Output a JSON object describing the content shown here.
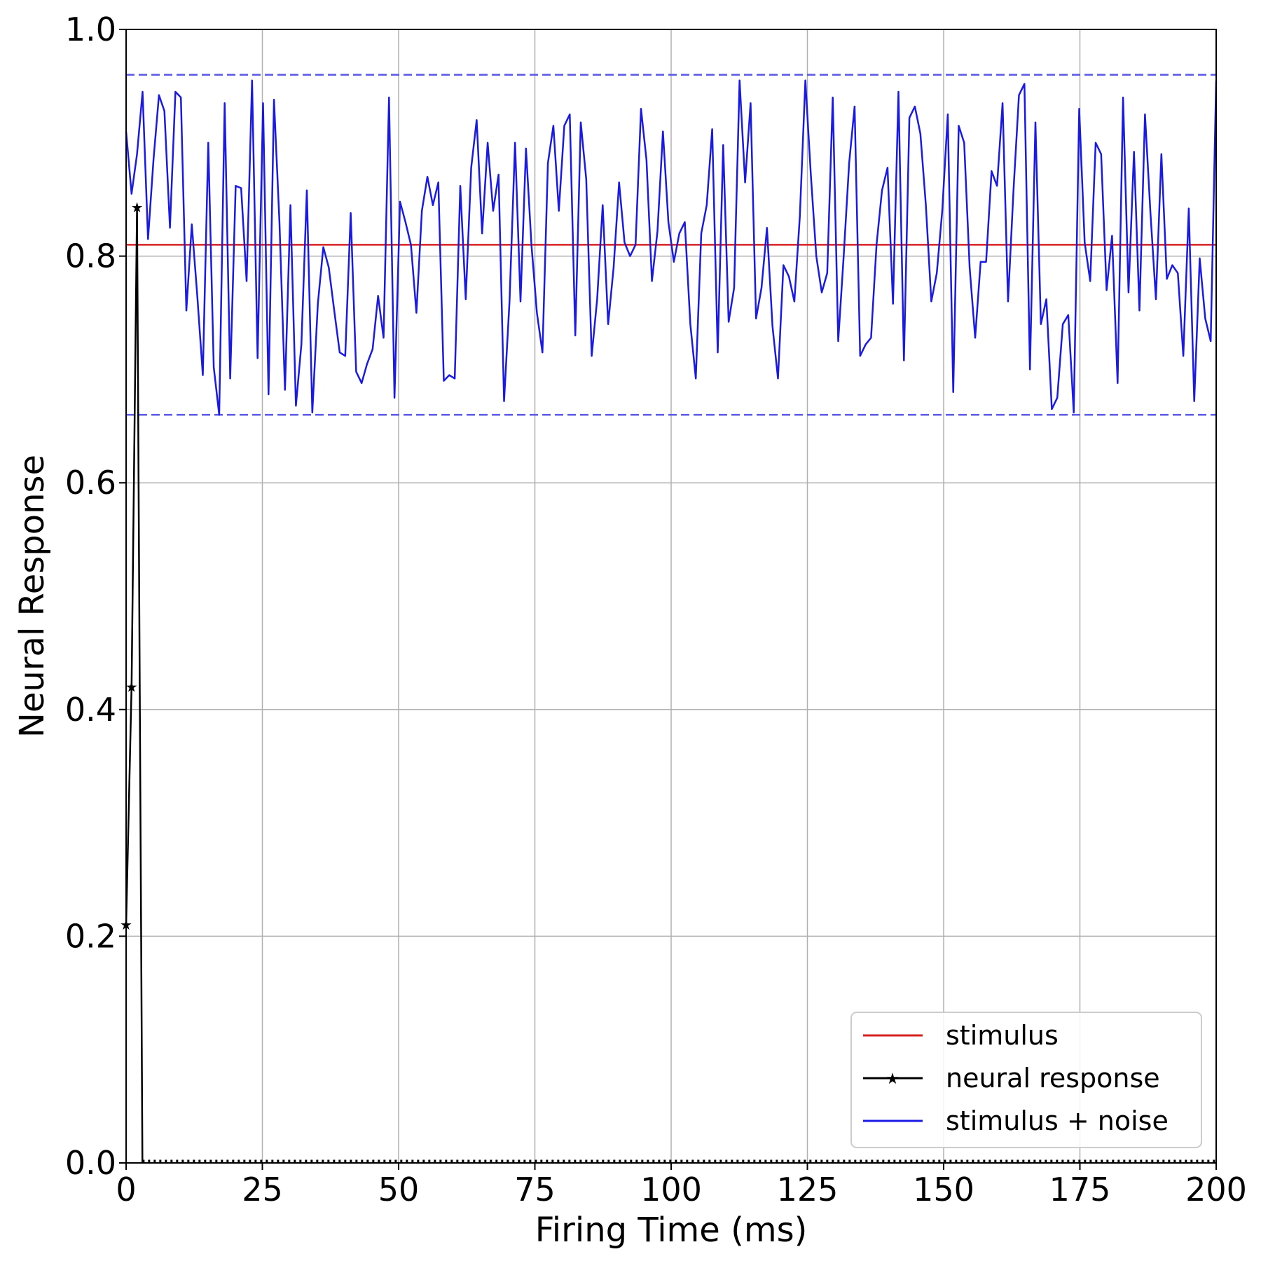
{
  "chart_data": {
    "type": "line",
    "title": "",
    "xlabel": "Firing Time (ms)",
    "ylabel": "Neural Response",
    "xlim": [
      0,
      200
    ],
    "ylim": [
      0.0,
      1.0
    ],
    "x_ticks": [
      "0",
      "25",
      "50",
      "75",
      "100",
      "125",
      "150",
      "175",
      "200"
    ],
    "y_ticks": [
      "0.0",
      "0.2",
      "0.4",
      "0.6",
      "0.8",
      "1.0"
    ],
    "grid": true,
    "legend_position": "lower-right",
    "legend": [
      "stimulus",
      "neural response",
      "stimulus + noise"
    ],
    "reference_lines": [
      {
        "y": 0.96,
        "style": "dashed",
        "color": "#5a5ae6"
      },
      {
        "y": 0.66,
        "style": "dashed",
        "color": "#5a5ae6"
      }
    ],
    "series": [
      {
        "name": "stimulus",
        "color": "#d62020",
        "x": [
          0,
          200
        ],
        "y": [
          0.81,
          0.81
        ]
      },
      {
        "name": "neural response",
        "color": "#000000",
        "marker": "star",
        "x": [
          0,
          1,
          2,
          3
        ],
        "y": [
          0.21,
          0.42,
          0.843,
          0.0
        ]
      },
      {
        "name": "stimulus + noise",
        "color": "#1a1ae6",
        "y": [
          0.91,
          0.855,
          0.89,
          0.945,
          0.815,
          0.885,
          0.942,
          0.928,
          0.825,
          0.945,
          0.94,
          0.752,
          0.828,
          0.765,
          0.695,
          0.9,
          0.702,
          0.66,
          0.935,
          0.692,
          0.862,
          0.86,
          0.778,
          0.955,
          0.71,
          0.935,
          0.678,
          0.938,
          0.83,
          0.682,
          0.845,
          0.668,
          0.722,
          0.858,
          0.662,
          0.758,
          0.808,
          0.79,
          0.752,
          0.715,
          0.712,
          0.838,
          0.698,
          0.688,
          0.705,
          0.718,
          0.765,
          0.728,
          0.94,
          0.675,
          0.848,
          0.83,
          0.81,
          0.75,
          0.84,
          0.87,
          0.845,
          0.865,
          0.69,
          0.695,
          0.692,
          0.862,
          0.762,
          0.878,
          0.92,
          0.82,
          0.9,
          0.84,
          0.872,
          0.672,
          0.76,
          0.9,
          0.76,
          0.895,
          0.81,
          0.75,
          0.715,
          0.882,
          0.915,
          0.84,
          0.915,
          0.925,
          0.73,
          0.918,
          0.868,
          0.712,
          0.762,
          0.845,
          0.74,
          0.79,
          0.865,
          0.812,
          0.8,
          0.81,
          0.93,
          0.885,
          0.778,
          0.822,
          0.91,
          0.83,
          0.795,
          0.82,
          0.83,
          0.74,
          0.692,
          0.82,
          0.845,
          0.912,
          0.715,
          0.898,
          0.742,
          0.772,
          0.955,
          0.865,
          0.935,
          0.745,
          0.772,
          0.825,
          0.738,
          0.692,
          0.792,
          0.782,
          0.76,
          0.835,
          0.955,
          0.872,
          0.8,
          0.768,
          0.785,
          0.94,
          0.725,
          0.8,
          0.882,
          0.932,
          0.712,
          0.722,
          0.728,
          0.81,
          0.858,
          0.878,
          0.758,
          0.945,
          0.708,
          0.922,
          0.932,
          0.908,
          0.845,
          0.76,
          0.785,
          0.84,
          0.925,
          0.68,
          0.915,
          0.9,
          0.79,
          0.728,
          0.795,
          0.795,
          0.875,
          0.862,
          0.935,
          0.76,
          0.858,
          0.942,
          0.952,
          0.7,
          0.918,
          0.74,
          0.762,
          0.665,
          0.675,
          0.74,
          0.748,
          0.662,
          0.93,
          0.812,
          0.778,
          0.9,
          0.89,
          0.77,
          0.818,
          0.688,
          0.94,
          0.768,
          0.892,
          0.752,
          0.925,
          0.838,
          0.762,
          0.89,
          0.78,
          0.792,
          0.785,
          0.712,
          0.842,
          0.672,
          0.798,
          0.745,
          0.725,
          0.955
        ]
      }
    ]
  }
}
